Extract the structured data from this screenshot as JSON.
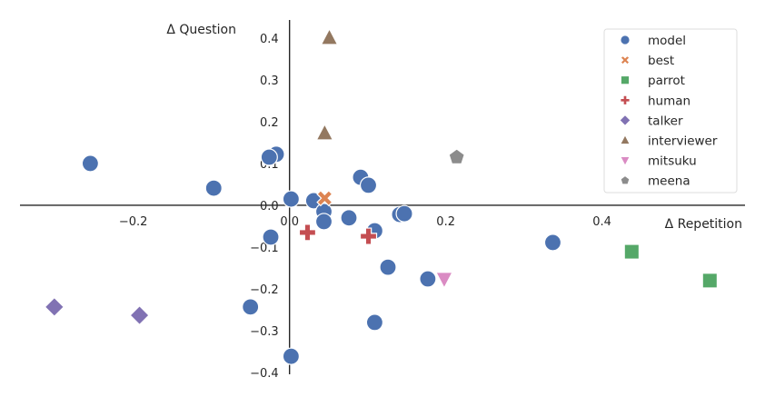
{
  "chart_data": {
    "type": "scatter",
    "xlabel": "Δ Repetition",
    "ylabel": "Δ Question",
    "xlim": [
      -0.345,
      0.583
    ],
    "ylim": [
      -0.404,
      0.443
    ],
    "xticks": [
      -0.2,
      0.0,
      0.2,
      0.4
    ],
    "xtick_labels": [
      "−0.2",
      "0.0",
      "0.2",
      "0.4"
    ],
    "yticks": [
      0.4,
      0.3,
      0.2,
      0.1,
      0.0,
      -0.1,
      -0.2,
      -0.3,
      -0.4
    ],
    "ytick_labels": [
      "0.4",
      "0.3",
      "0.2",
      "0.1",
      "0.0",
      "−0.1",
      "−0.2",
      "−0.3",
      "−0.4"
    ],
    "grid": false,
    "legend_position": "top-right",
    "series": [
      {
        "name": "model",
        "marker": "circle",
        "color": "#4C72B0",
        "points": [
          [
            -0.255,
            0.1
          ],
          [
            -0.097,
            0.041
          ],
          [
            -0.017,
            0.122
          ],
          [
            -0.026,
            0.115
          ],
          [
            0.002,
            0.015
          ],
          [
            0.031,
            0.011
          ],
          [
            0.044,
            -0.015
          ],
          [
            0.044,
            -0.039
          ],
          [
            0.076,
            -0.03
          ],
          [
            0.091,
            0.067
          ],
          [
            0.101,
            0.048
          ],
          [
            0.109,
            -0.061
          ],
          [
            0.141,
            -0.022
          ],
          [
            0.147,
            -0.02
          ],
          [
            -0.024,
            -0.076
          ],
          [
            0.337,
            -0.089
          ],
          [
            0.126,
            -0.148
          ],
          [
            0.177,
            -0.176
          ],
          [
            -0.05,
            -0.243
          ],
          [
            0.109,
            -0.28
          ],
          [
            0.002,
            -0.361
          ]
        ]
      },
      {
        "name": "best",
        "marker": "x",
        "color": "#DD8452",
        "points": [
          [
            0.045,
            0.017
          ]
        ]
      },
      {
        "name": "parrot",
        "marker": "square",
        "color": "#55A868",
        "points": [
          [
            0.438,
            -0.111
          ],
          [
            0.538,
            -0.18
          ]
        ]
      },
      {
        "name": "human",
        "marker": "plus",
        "color": "#C44E52",
        "points": [
          [
            0.023,
            -0.065
          ],
          [
            0.101,
            -0.074
          ]
        ]
      },
      {
        "name": "talker",
        "marker": "diamond",
        "color": "#8172B3",
        "points": [
          [
            -0.301,
            -0.243
          ],
          [
            -0.192,
            -0.263
          ]
        ]
      },
      {
        "name": "interviewer",
        "marker": "triangle-up",
        "color": "#937860",
        "points": [
          [
            0.051,
            0.4
          ],
          [
            0.045,
            0.172
          ]
        ]
      },
      {
        "name": "mitsuku",
        "marker": "triangle-down",
        "color": "#DA8BC3",
        "points": [
          [
            0.198,
            -0.176
          ]
        ]
      },
      {
        "name": "meena",
        "marker": "pentagon",
        "color": "#8C8C8C",
        "points": [
          [
            0.214,
            0.115
          ]
        ]
      }
    ]
  }
}
